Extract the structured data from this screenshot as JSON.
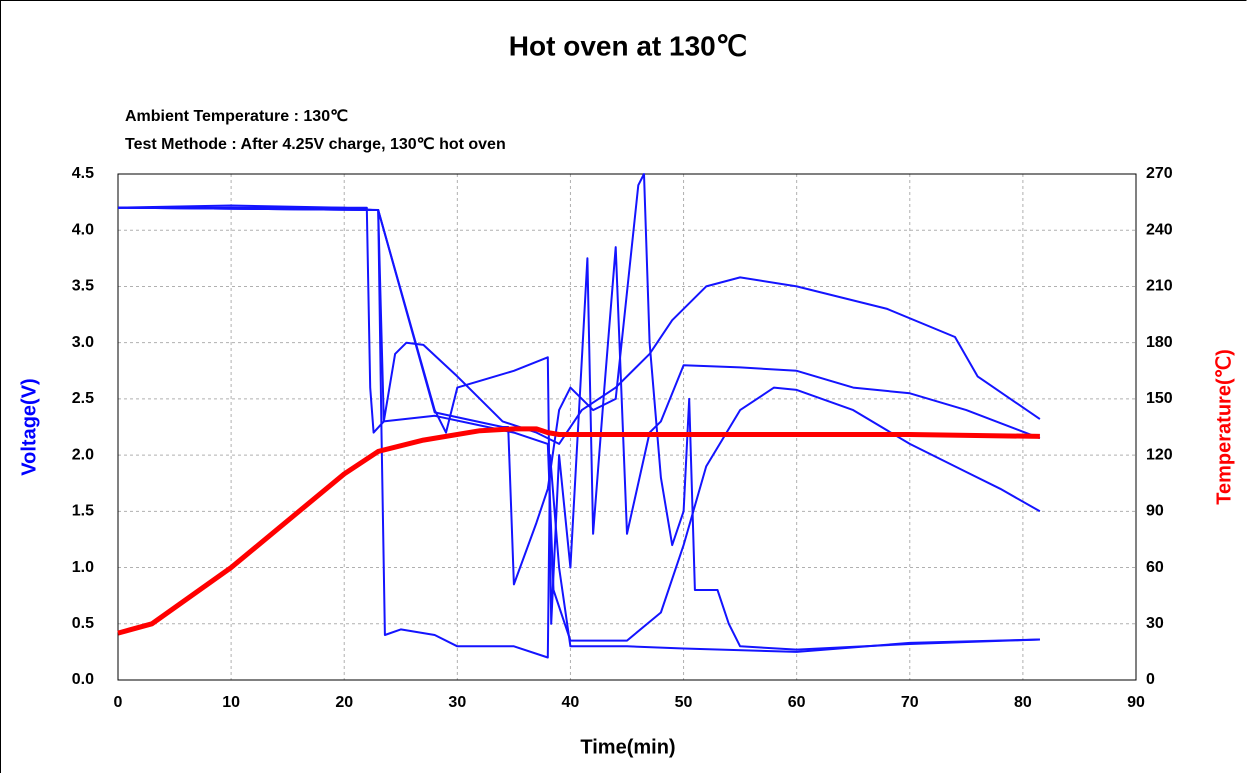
{
  "chart_data": {
    "type": "line",
    "title": "Hot oven at 130℃",
    "annotations": [
      "Ambient Temperature : 130℃",
      "Test Methode : After 4.25V charge, 130℃ hot oven"
    ],
    "x_label": "Time(min)",
    "y_label": "Voltage(V)",
    "y2_label": "Temperature(℃)",
    "y_label_color": "#0000ff",
    "y2_label_color": "#ff0000",
    "xlim": [
      0,
      90
    ],
    "xticks": [
      0,
      10,
      20,
      30,
      40,
      50,
      60,
      70,
      80,
      90
    ],
    "ylim": [
      0,
      4.5
    ],
    "yticks": [
      {
        "value": 0,
        "label": "0.0"
      },
      0.5,
      {
        "value": 1,
        "label": "1.0"
      },
      1.5,
      {
        "value": 2,
        "label": "2.0"
      },
      2.5,
      {
        "value": 3,
        "label": "3.0"
      },
      3.5,
      {
        "value": 4,
        "label": "4.0"
      },
      4.5
    ],
    "y2lim": [
      0,
      270
    ],
    "y2ticks": [
      0,
      30,
      60,
      90,
      120,
      150,
      180,
      210,
      240,
      270
    ],
    "grid": true,
    "series": [
      {
        "color": "#1414ff",
        "x": [
          0,
          10,
          20,
          22.5,
          23,
          23.3,
          23.6,
          25,
          28,
          30,
          35,
          38,
          38.2,
          39,
          40,
          45,
          50,
          60,
          70,
          81.5
        ],
        "values": [
          4.2,
          4.22,
          4.2,
          4.18,
          4.18,
          2.2,
          0.4,
          0.45,
          0.4,
          0.3,
          0.3,
          0.2,
          2.0,
          1.0,
          0.3,
          0.3,
          0.28,
          0.25,
          0.33,
          0.36
        ]
      },
      {
        "color": "#1414ff",
        "x": [
          0,
          22,
          22.3,
          22.6,
          23.5,
          24.5,
          25.5,
          27,
          30,
          34,
          37,
          39,
          41,
          44,
          47,
          49,
          52,
          55,
          60,
          68,
          74,
          76,
          81.5
        ],
        "values": [
          4.2,
          4.2,
          2.6,
          2.2,
          2.3,
          2.9,
          3.0,
          2.98,
          2.7,
          2.3,
          2.2,
          2.1,
          2.4,
          2.6,
          2.9,
          3.2,
          3.5,
          3.58,
          3.5,
          3.3,
          3.05,
          2.7,
          2.32
        ]
      },
      {
        "color": "#1414ff",
        "x": [
          0,
          23,
          28,
          29,
          30,
          35,
          38,
          38.3,
          39,
          40,
          41.5,
          42,
          43,
          44,
          45,
          47,
          48,
          50,
          55,
          60,
          65,
          70,
          75,
          81.5
        ],
        "values": [
          4.2,
          4.18,
          2.4,
          2.2,
          2.6,
          2.75,
          2.87,
          0.5,
          2.0,
          1.0,
          3.75,
          1.3,
          2.6,
          3.85,
          1.3,
          2.2,
          2.3,
          2.8,
          2.78,
          2.75,
          2.6,
          2.55,
          2.4,
          2.15
        ]
      },
      {
        "color": "#1414ff",
        "x": [
          0,
          23,
          28,
          34,
          34.5,
          35,
          37,
          38,
          39,
          40,
          42,
          44,
          46,
          46.5,
          47,
          48,
          49,
          50,
          50.5,
          51,
          53,
          54,
          55,
          60,
          70,
          81.5
        ],
        "values": [
          4.2,
          4.18,
          2.38,
          2.25,
          2.25,
          0.85,
          1.4,
          1.7,
          2.4,
          2.6,
          2.4,
          2.5,
          4.4,
          4.5,
          3.0,
          1.8,
          1.2,
          1.5,
          2.5,
          0.8,
          0.8,
          0.5,
          0.3,
          0.27,
          0.32,
          0.36
        ]
      },
      {
        "color": "#1414ff",
        "x": [
          0,
          23,
          23.5,
          28,
          35,
          38,
          38.5,
          40,
          45,
          48,
          50,
          52,
          55,
          58,
          60,
          65,
          70,
          75,
          78,
          81.5
        ],
        "values": [
          4.2,
          4.18,
          2.3,
          2.35,
          2.2,
          2.1,
          0.8,
          0.35,
          0.35,
          0.6,
          1.2,
          1.9,
          2.4,
          2.6,
          2.58,
          2.4,
          2.1,
          1.85,
          1.7,
          1.5
        ]
      },
      {
        "color": "#ff0000",
        "axis": "y2",
        "x": [
          0,
          3,
          10,
          20,
          23,
          27,
          32,
          35,
          37,
          38,
          39,
          40,
          50,
          60,
          70,
          81.5
        ],
        "values": [
          25,
          30,
          60,
          110,
          122,
          128,
          133,
          134,
          134,
          132,
          131,
          131,
          131,
          131,
          131,
          130
        ]
      }
    ]
  }
}
